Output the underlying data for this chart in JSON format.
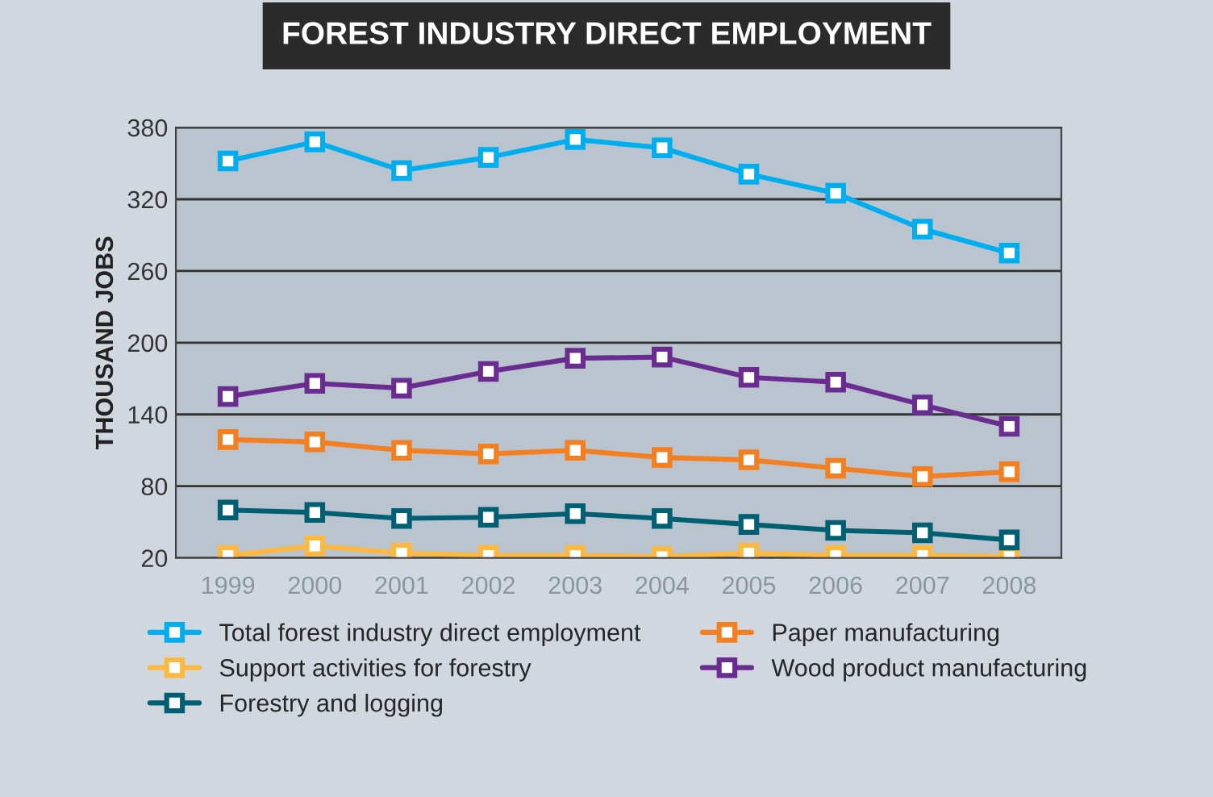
{
  "chart_data": {
    "type": "line",
    "title": "FOREST INDUSTRY DIRECT EMPLOYMENT",
    "ylabel": "THOUSAND JOBS",
    "categories": [
      "1999",
      "2000",
      "2001",
      "2002",
      "2003",
      "2004",
      "2005",
      "2006",
      "2007",
      "2008"
    ],
    "series": [
      {
        "name": "Total forest industry direct employment",
        "color": "#00aeef",
        "values": [
          352,
          368,
          344,
          355,
          370,
          363,
          341,
          325,
          295,
          275
        ]
      },
      {
        "name": "Support activities for forestry",
        "color": "#fdb83f",
        "values": [
          22,
          30,
          24,
          22,
          22,
          21,
          24,
          22,
          22,
          21
        ]
      },
      {
        "name": "Forestry and logging",
        "color": "#005f73",
        "values": [
          60,
          58,
          53,
          54,
          57,
          53,
          48,
          43,
          41,
          35
        ]
      },
      {
        "name": "Paper manufacturing",
        "color": "#f47f20",
        "values": [
          119,
          117,
          110,
          107,
          110,
          104,
          102,
          95,
          88,
          92
        ]
      },
      {
        "name": "Wood product manufacturing",
        "color": "#6a2c91",
        "values": [
          155,
          166,
          162,
          176,
          187,
          188,
          171,
          167,
          148,
          130
        ]
      }
    ],
    "ylim": [
      20,
      380
    ],
    "yticks": [
      20,
      80,
      140,
      200,
      260,
      320,
      380
    ],
    "grid": "y",
    "legend": "bottom",
    "marker": "square",
    "line_style": "solid"
  }
}
